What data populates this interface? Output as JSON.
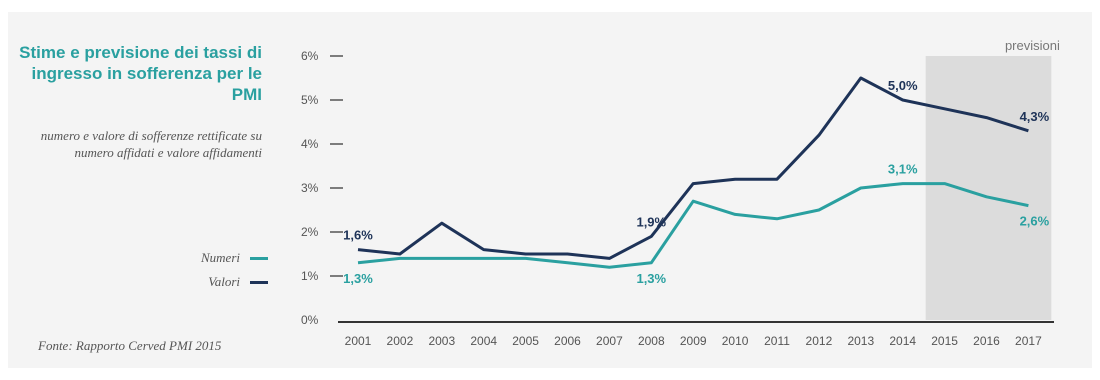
{
  "title": "Stime e previsione dei tassi di ingresso in sofferenza per le PMI",
  "subtitle": "numero e valore di sofferenze rettificate su numero affidati e valore affidamenti",
  "source": "Fonte: Rapporto Cerved PMI 2015",
  "colors": {
    "numeri": "#2aa0a0",
    "valori": "#1e3358",
    "forecast_band": "#dcdcdc",
    "title": "#2aa0a0"
  },
  "chart_data": {
    "type": "line",
    "title": "Stime e previsione dei tassi di ingresso in sofferenza per le PMI",
    "x": [
      "2001",
      "2002",
      "2003",
      "2004",
      "2005",
      "2006",
      "2007",
      "2008",
      "2009",
      "2010",
      "2011",
      "2012",
      "2013",
      "2014",
      "2015",
      "2016",
      "2017"
    ],
    "yticks": [
      "0%",
      "1%",
      "2%",
      "3%",
      "4%",
      "5%",
      "6%"
    ],
    "ylim": [
      0,
      6
    ],
    "forecast": {
      "label": "previsioni",
      "from": "2015",
      "to": "2017"
    },
    "series": [
      {
        "name": "Numeri",
        "color": "#2aa0a0",
        "values": [
          1.3,
          1.4,
          1.4,
          1.4,
          1.4,
          1.3,
          1.2,
          1.3,
          2.7,
          2.4,
          2.3,
          2.5,
          3.0,
          3.1,
          3.1,
          2.8,
          2.6
        ]
      },
      {
        "name": "Valori",
        "color": "#1e3358",
        "values": [
          1.6,
          1.5,
          2.2,
          1.6,
          1.5,
          1.5,
          1.4,
          1.9,
          3.1,
          3.2,
          3.2,
          4.2,
          5.5,
          5.0,
          4.8,
          4.6,
          4.3
        ]
      }
    ],
    "annotations": [
      {
        "series": "Valori",
        "x": "2001",
        "text": "1,6%",
        "pos": "above"
      },
      {
        "series": "Numeri",
        "x": "2001",
        "text": "1,3%",
        "pos": "below"
      },
      {
        "series": "Valori",
        "x": "2008",
        "text": "1,9%",
        "pos": "above"
      },
      {
        "series": "Numeri",
        "x": "2008",
        "text": "1,3%",
        "pos": "below"
      },
      {
        "series": "Valori",
        "x": "2014",
        "text": "5,0%",
        "pos": "above"
      },
      {
        "series": "Numeri",
        "x": "2014",
        "text": "3,1%",
        "pos": "above"
      },
      {
        "series": "Valori",
        "x": "2017",
        "text": "4,3%",
        "pos": "above"
      },
      {
        "series": "Numeri",
        "x": "2017",
        "text": "2,6%",
        "pos": "below"
      }
    ],
    "legend": [
      {
        "label": "Numeri",
        "color": "#2aa0a0"
      },
      {
        "label": "Valori",
        "color": "#1e3358"
      }
    ]
  }
}
